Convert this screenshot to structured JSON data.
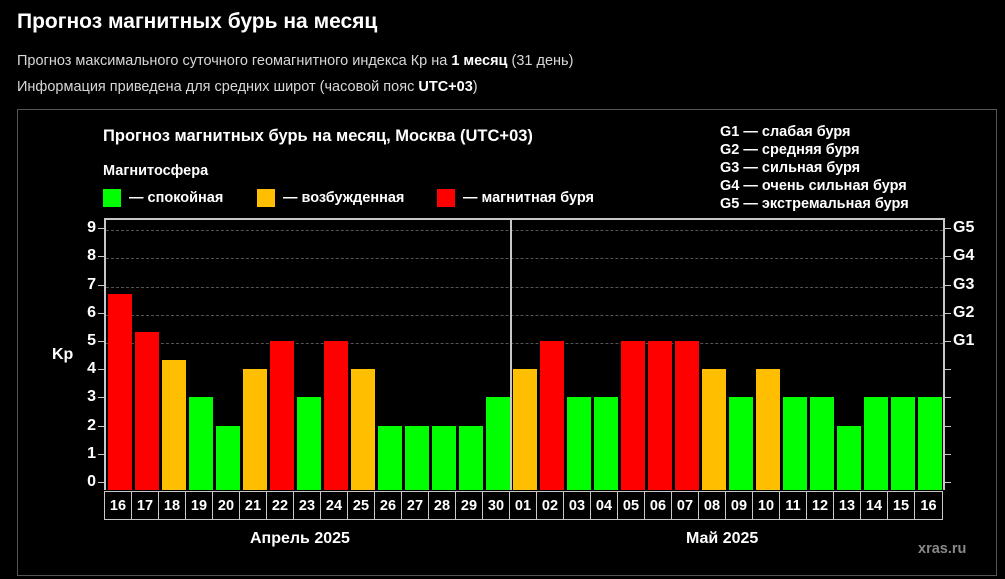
{
  "header": {
    "title": "Прогноз магнитных бурь на месяц",
    "subtitle1_pre": "Прогноз максимального суточного геомагнитного индекса Кр на ",
    "subtitle1_bold": "1 месяц",
    "subtitle1_post": " (31 день)",
    "subtitle2_pre": "Информация приведена для средних широт (часовой пояс ",
    "subtitle2_bold": "UTC+03",
    "subtitle2_post": ")"
  },
  "legend": {
    "heading": "Магнитосфера",
    "items": [
      {
        "label": "— спокойная",
        "color": "#00ff00"
      },
      {
        "label": "— возбужденная",
        "color": "#ffbf00"
      },
      {
        "label": "— магнитная буря",
        "color": "#ff0000"
      }
    ],
    "g_scale": [
      "G1 — слабая буря",
      "G2 — средняя буря",
      "G3 — сильная буря",
      "G4 — очень сильная буря",
      "G5 — экстремальная буря"
    ]
  },
  "watermark": "xras.ru",
  "colors": {
    "quiet": "#00ff00",
    "active": "#ffbf00",
    "storm": "#ff0000"
  },
  "chart_data": {
    "type": "bar",
    "title": "Прогноз магнитных бурь на месяц, Москва (UTC+03)",
    "xlabel": "Апрель 2025 / Май 2025",
    "ylabel": "Kp",
    "ylim": [
      0,
      9
    ],
    "yticks": [
      0,
      1,
      2,
      3,
      4,
      5,
      6,
      7,
      8,
      9
    ],
    "secondary_yticks": [
      {
        "value": 5,
        "label": "G1"
      },
      {
        "value": 6,
        "label": "G2"
      },
      {
        "value": 7,
        "label": "G3"
      },
      {
        "value": 8,
        "label": "G4"
      },
      {
        "value": 9,
        "label": "G5"
      }
    ],
    "grid": true,
    "months": [
      {
        "label": "Апрель 2025",
        "days": 15
      },
      {
        "label": "Май 2025",
        "days": 16
      }
    ],
    "categories": [
      "16",
      "17",
      "18",
      "19",
      "20",
      "21",
      "22",
      "23",
      "24",
      "25",
      "26",
      "27",
      "28",
      "29",
      "30",
      "01",
      "02",
      "03",
      "04",
      "05",
      "06",
      "07",
      "08",
      "09",
      "10",
      "11",
      "12",
      "13",
      "14",
      "15",
      "16"
    ],
    "values": [
      6.67,
      5.33,
      4.33,
      3,
      2,
      4,
      5,
      3,
      5,
      4,
      2,
      2,
      2,
      2,
      3,
      4,
      5,
      3,
      3,
      5,
      5,
      5,
      4,
      3,
      4,
      3,
      3,
      2,
      3,
      3,
      3
    ],
    "status": [
      "storm",
      "storm",
      "active",
      "quiet",
      "quiet",
      "active",
      "storm",
      "quiet",
      "storm",
      "active",
      "quiet",
      "quiet",
      "quiet",
      "quiet",
      "quiet",
      "active",
      "storm",
      "quiet",
      "quiet",
      "storm",
      "storm",
      "storm",
      "active",
      "quiet",
      "active",
      "quiet",
      "quiet",
      "quiet",
      "quiet",
      "quiet",
      "quiet"
    ]
  }
}
